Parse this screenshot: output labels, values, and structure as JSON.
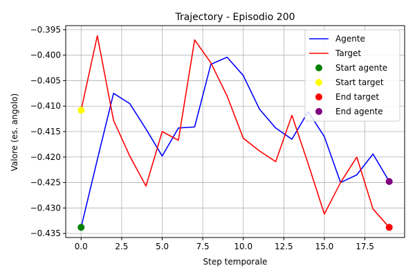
{
  "chart_data": {
    "type": "line",
    "title": "Trajectory - Episodio 200",
    "xlabel": "Step temporale",
    "ylabel": "Valore (es. angolo)",
    "xlim": [
      -0.95,
      19.95
    ],
    "ylim": [
      -0.4358,
      -0.3942
    ],
    "xticks": [
      0.0,
      2.5,
      5.0,
      7.5,
      10.0,
      12.5,
      15.0,
      17.5
    ],
    "xtick_labels": [
      "0.0",
      "2.5",
      "5.0",
      "7.5",
      "10.0",
      "12.5",
      "15.0",
      "17.5"
    ],
    "yticks": [
      -0.395,
      -0.4,
      -0.405,
      -0.41,
      -0.415,
      -0.42,
      -0.425,
      -0.43,
      -0.435
    ],
    "ytick_labels": [
      "−0.395",
      "−0.400",
      "−0.405",
      "−0.410",
      "−0.415",
      "−0.420",
      "−0.425",
      "−0.430",
      "−0.435"
    ],
    "grid": true,
    "legend_position": "top-right",
    "x": [
      0,
      1,
      2,
      3,
      4,
      5,
      6,
      7,
      8,
      9,
      10,
      11,
      12,
      13,
      14,
      15,
      16,
      17,
      18,
      19
    ],
    "series": [
      {
        "name": "Agente",
        "color": "#0000ff",
        "values": [
          -0.4338,
          -0.4205,
          -0.4075,
          -0.4095,
          -0.4145,
          -0.4198,
          -0.4143,
          -0.4141,
          -0.4018,
          -0.4004,
          -0.404,
          -0.4106,
          -0.4143,
          -0.4165,
          -0.4111,
          -0.416,
          -0.425,
          -0.4235,
          -0.4194,
          -0.4248
        ]
      },
      {
        "name": "Target",
        "color": "#ff0000",
        "values": [
          -0.4108,
          -0.3962,
          -0.4128,
          -0.4198,
          -0.4257,
          -0.415,
          -0.4167,
          -0.397,
          -0.4015,
          -0.408,
          -0.4163,
          -0.4188,
          -0.4209,
          -0.4118,
          -0.4213,
          -0.4312,
          -0.425,
          -0.42,
          -0.4302,
          -0.4338
        ]
      }
    ],
    "markers": [
      {
        "name": "Start agente",
        "color": "#008000",
        "x": 0,
        "y": -0.4338
      },
      {
        "name": "Start target",
        "color": "#ffff00",
        "x": 0,
        "y": -0.4108
      },
      {
        "name": "End target",
        "color": "#ff0000",
        "x": 19,
        "y": -0.4338
      },
      {
        "name": "End agente",
        "color": "#800080",
        "x": 19,
        "y": -0.4248
      }
    ]
  }
}
